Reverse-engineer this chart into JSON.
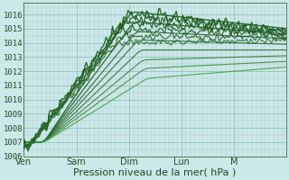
{
  "bg_color": "#cce8e8",
  "grid_color_minor": "#aacece",
  "grid_color_major": "#88bbbb",
  "line_colors": [
    "#1a5c1a",
    "#1a5c1a",
    "#1e6e1e",
    "#266626",
    "#2e7e2e",
    "#368636",
    "#3e9e3e",
    "#46a646",
    "#4eae4e"
  ],
  "ylim": [
    1006,
    1016.8
  ],
  "yticks": [
    1006,
    1007,
    1008,
    1009,
    1010,
    1011,
    1012,
    1013,
    1014,
    1015,
    1016
  ],
  "xtick_labels": [
    "Ven",
    "Sam",
    "Dim",
    "Lun",
    "M"
  ],
  "xlabel": "Pression niveau de la mer( hPa )",
  "xlabel_fontsize": 8,
  "ytick_fontsize": 6.5,
  "xtick_fontsize": 7,
  "total_points": 240
}
